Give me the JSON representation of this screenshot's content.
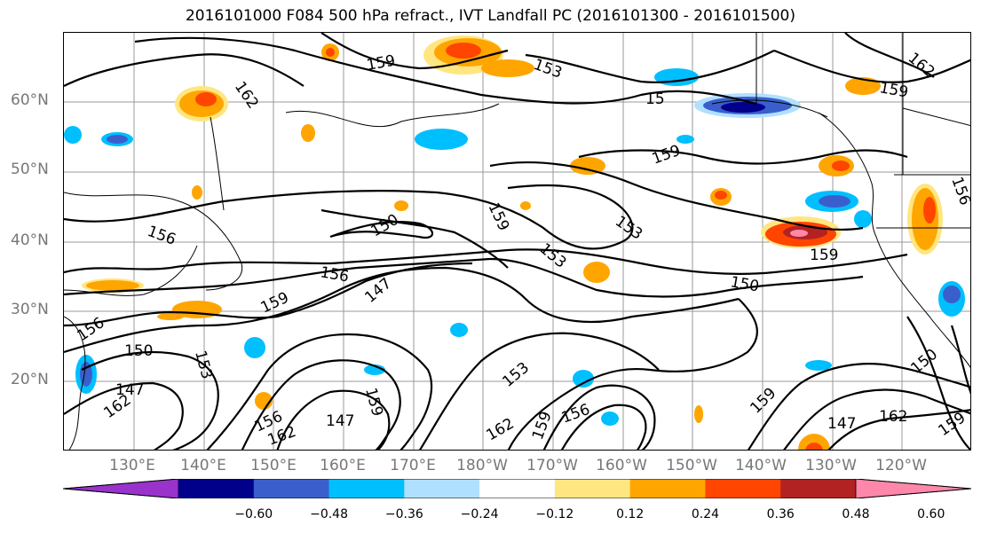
{
  "title": "2016101000 F084 500 hPa refract., IVT Landfall PC (2016101300 - 2016101500)",
  "lat_labels": [
    "60°N",
    "50°N",
    "40°N",
    "30°N",
    "20°N"
  ],
  "lon_labels": [
    "130°E",
    "140°E",
    "150°E",
    "160°E",
    "170°E",
    "180°W",
    "170°W",
    "160°W",
    "150°W",
    "140°W",
    "130°W",
    "120°W"
  ],
  "contour_labels": [
    "162",
    "159",
    "153",
    "15",
    "162",
    "159",
    "159",
    "156",
    "150",
    "159",
    "156",
    "153",
    "153",
    "156",
    "150",
    "159",
    "147",
    "159",
    "156",
    "150",
    "153",
    "147",
    "162",
    "159",
    "156",
    "162",
    "147",
    "162",
    "153",
    "159",
    "156",
    "159",
    "147",
    "162",
    "150",
    "159"
  ],
  "colorbar": {
    "ticks": [
      "−0.60",
      "−0.48",
      "−0.36",
      "−0.24",
      "−0.12",
      "0.12",
      "0.24",
      "0.36",
      "0.48",
      "0.60"
    ],
    "colors": [
      "#9933cc",
      "#00008b",
      "#3a5fcd",
      "#00bfff",
      "#b0e0ff",
      "#ffffff",
      "#ffe680",
      "#ffa500",
      "#ff4500",
      "#b22222",
      "#ff88aa"
    ]
  }
}
